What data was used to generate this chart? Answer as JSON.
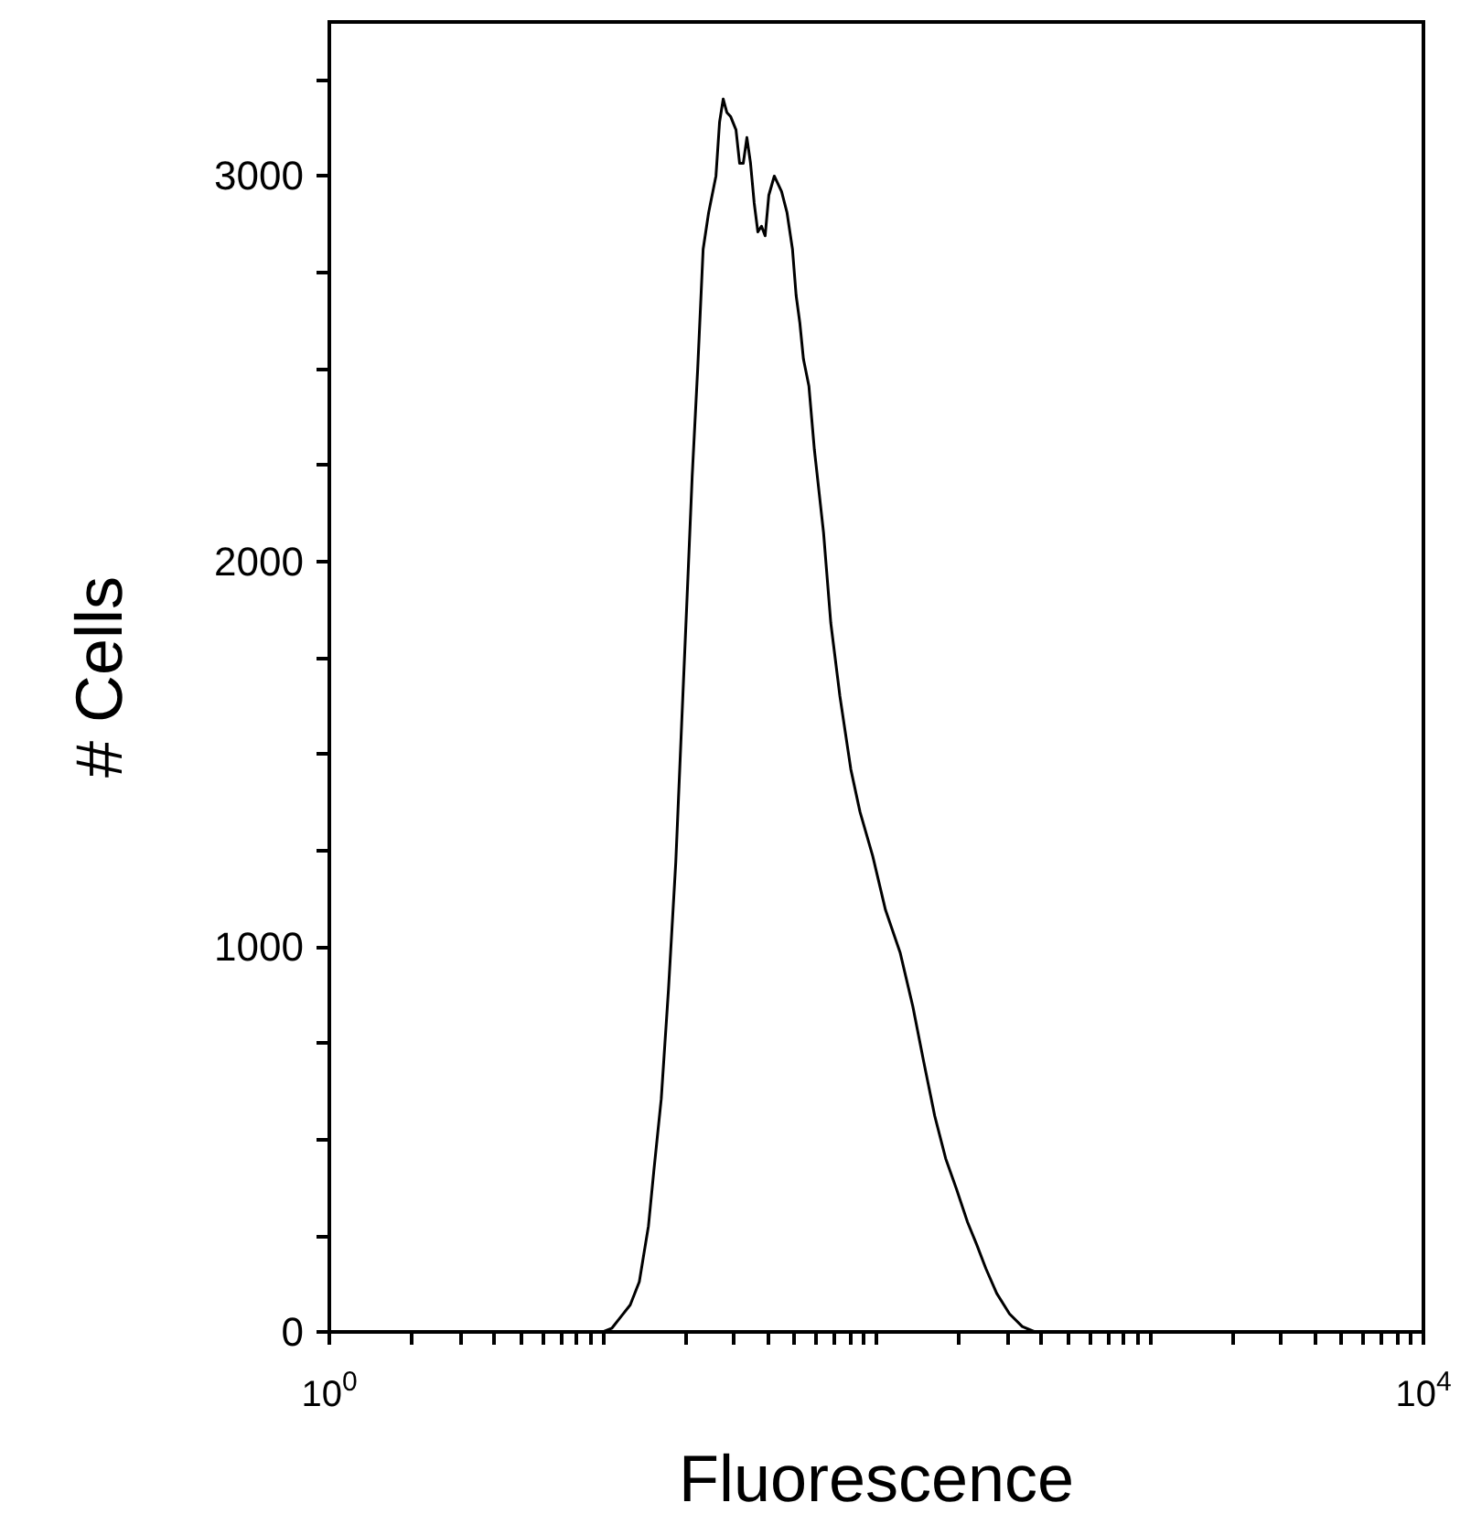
{
  "chart_data": {
    "type": "line",
    "xlabel": "Fluorescence",
    "ylabel": "# Cells",
    "x": [
      1,
      10,
      10.8,
      11.66,
      12.59,
      13.59,
      14.68,
      15.37,
      16.35,
      17.38,
      18.48,
      19.35,
      20.26,
      21.21,
      22.22,
      23.26,
      24.36,
      25.91,
      26.71,
      27.54,
      28.4,
      29.29,
      30.67,
      31.62,
      32.61,
      33.62,
      34.67,
      35.75,
      36.87,
      38.02,
      39.2,
      40.43,
      42.34,
      45.02,
      47.13,
      49.35,
      50.89,
      52.48,
      54.12,
      56.67,
      59.34,
      64.09,
      68.13,
      73.56,
      80.66,
      87.1,
      96.98,
      108.0,
      122.1,
      135.9,
      149.1,
      163.5,
      179.2,
      196.5,
      215.4,
      232.6,
      251.2,
      275.4,
      306.7,
      341.5,
      380.2,
      10000
    ],
    "series": [
      {
        "color": "#000000",
        "values": [
          0,
          0,
          10,
          40,
          70,
          130,
          275,
          420,
          605,
          890,
          1220,
          1555,
          1885,
          2220,
          2500,
          2810,
          2905,
          3000,
          3140,
          3200,
          3165,
          3155,
          3120,
          3033,
          3033,
          3100,
          3033,
          2930,
          2855,
          2870,
          2845,
          2950,
          3000,
          2960,
          2905,
          2810,
          2690,
          2620,
          2525,
          2455,
          2290,
          2075,
          1840,
          1650,
          1460,
          1350,
          1235,
          1095,
          985,
          845,
          700,
          560,
          450,
          370,
          285,
          227,
          165,
          100,
          47,
          14,
          0,
          0
        ]
      }
    ],
    "log": "x",
    "xlim": [
      1,
      10000
    ],
    "ylim": [
      0,
      3400
    ],
    "xticks": [
      {
        "value": 1,
        "label": "10$^{0}$"
      },
      {
        "value": 2,
        "label": null
      },
      {
        "value": 3,
        "label": null
      },
      {
        "value": 4,
        "label": null
      },
      {
        "value": 5,
        "label": null
      },
      {
        "value": 6,
        "label": null
      },
      {
        "value": 7,
        "label": null
      },
      {
        "value": 8,
        "label": null
      },
      {
        "value": 9,
        "label": null
      },
      {
        "value": 10,
        "label": null
      },
      {
        "value": 20,
        "label": null
      },
      {
        "value": 30,
        "label": null
      },
      {
        "value": 40,
        "label": null
      },
      {
        "value": 50,
        "label": null
      },
      {
        "value": 60,
        "label": null
      },
      {
        "value": 70,
        "label": null
      },
      {
        "value": 80,
        "label": null
      },
      {
        "value": 90,
        "label": null
      },
      {
        "value": 100,
        "label": null
      },
      {
        "value": 200,
        "label": null
      },
      {
        "value": 300,
        "label": null
      },
      {
        "value": 400,
        "label": null
      },
      {
        "value": 500,
        "label": null
      },
      {
        "value": 600,
        "label": null
      },
      {
        "value": 700,
        "label": null
      },
      {
        "value": 800,
        "label": null
      },
      {
        "value": 900,
        "label": null
      },
      {
        "value": 1000,
        "label": null
      },
      {
        "value": 2000,
        "label": null
      },
      {
        "value": 3000,
        "label": null
      },
      {
        "value": 4000,
        "label": null
      },
      {
        "value": 5000,
        "label": null
      },
      {
        "value": 6000,
        "label": null
      },
      {
        "value": 7000,
        "label": null
      },
      {
        "value": 8000,
        "label": null
      },
      {
        "value": 9000,
        "label": null
      },
      {
        "value": 10000,
        "label": "10$^{4}$"
      }
    ],
    "yticks": [
      0,
      {
        "value": 250,
        "label": null
      },
      {
        "value": 500,
        "label": null
      },
      {
        "value": 750,
        "label": null
      },
      1000,
      {
        "value": 1250,
        "label": null
      },
      {
        "value": 1500,
        "label": null
      },
      {
        "value": 1750,
        "label": null
      },
      2000,
      {
        "value": 2250,
        "label": null
      },
      {
        "value": 2500,
        "label": null
      },
      {
        "value": 2750,
        "label": null
      },
      3000,
      {
        "value": 3250,
        "label": null
      }
    ],
    "grid": false,
    "marker": "none",
    "line_style": "solid"
  }
}
